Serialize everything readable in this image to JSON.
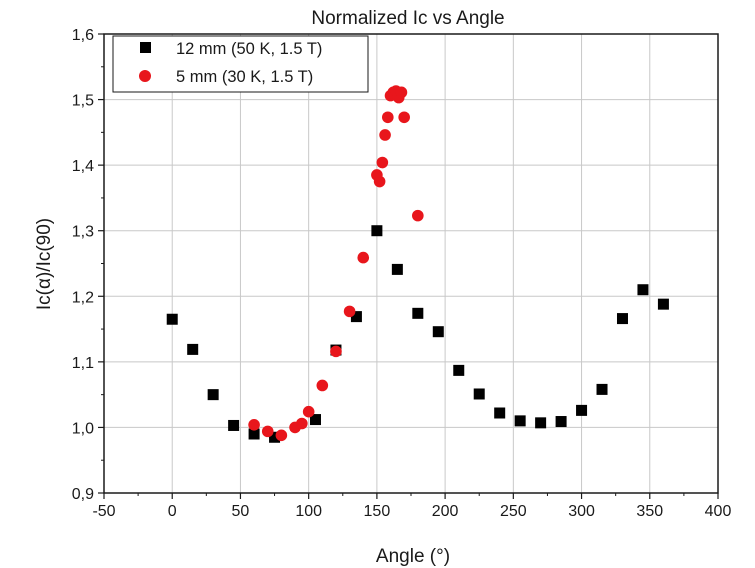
{
  "chart_data": {
    "type": "scatter",
    "title": "Normalized Ic vs Angle",
    "xlabel": "Angle (°)",
    "ylabel": "Ic(α)/Ic(90)",
    "xlim": [
      -50,
      400
    ],
    "ylim": [
      0.9,
      1.6
    ],
    "x_ticks": [
      -50,
      0,
      50,
      100,
      150,
      200,
      250,
      300,
      350,
      400
    ],
    "y_ticks": [
      0.9,
      1.0,
      1.1,
      1.2,
      1.3,
      1.4,
      1.5,
      1.6
    ],
    "x_tick_labels": [
      "-50",
      "0",
      "50",
      "100",
      "150",
      "200",
      "250",
      "300",
      "350",
      "400"
    ],
    "y_tick_labels": [
      "0,9",
      "1,0",
      "1,1",
      "1,2",
      "1,3",
      "1,4",
      "1,5",
      "1,6"
    ],
    "grid": true,
    "legend_position": "top-left",
    "series": [
      {
        "name": "12 mm (50 K, 1.5 T)",
        "marker": "square",
        "color": "#000000",
        "points": [
          [
            0,
            1.165
          ],
          [
            15,
            1.119
          ],
          [
            30,
            1.05
          ],
          [
            45,
            1.003
          ],
          [
            60,
            0.99
          ],
          [
            75,
            0.985
          ],
          [
            105,
            1.012
          ],
          [
            120,
            1.118
          ],
          [
            135,
            1.169
          ],
          [
            150,
            1.3
          ],
          [
            165,
            1.241
          ],
          [
            180,
            1.174
          ],
          [
            195,
            1.146
          ],
          [
            210,
            1.087
          ],
          [
            225,
            1.051
          ],
          [
            240,
            1.022
          ],
          [
            255,
            1.01
          ],
          [
            270,
            1.007
          ],
          [
            285,
            1.009
          ],
          [
            300,
            1.026
          ],
          [
            315,
            1.058
          ],
          [
            330,
            1.166
          ],
          [
            345,
            1.21
          ],
          [
            360,
            1.188
          ]
        ]
      },
      {
        "name": "5 mm (30 K, 1.5 T)",
        "marker": "circle",
        "color": "#e8161c",
        "points": [
          [
            60,
            1.004
          ],
          [
            70,
            0.994
          ],
          [
            80,
            0.988
          ],
          [
            90,
            1.0
          ],
          [
            95,
            1.006
          ],
          [
            100,
            1.024
          ],
          [
            110,
            1.064
          ],
          [
            120,
            1.116
          ],
          [
            130,
            1.177
          ],
          [
            140,
            1.259
          ],
          [
            150,
            1.385
          ],
          [
            152,
            1.375
          ],
          [
            154,
            1.404
          ],
          [
            156,
            1.446
          ],
          [
            158,
            1.473
          ],
          [
            160,
            1.506
          ],
          [
            162,
            1.511
          ],
          [
            164,
            1.513
          ],
          [
            166,
            1.503
          ],
          [
            168,
            1.511
          ],
          [
            170,
            1.473
          ],
          [
            180,
            1.323
          ]
        ]
      }
    ]
  }
}
